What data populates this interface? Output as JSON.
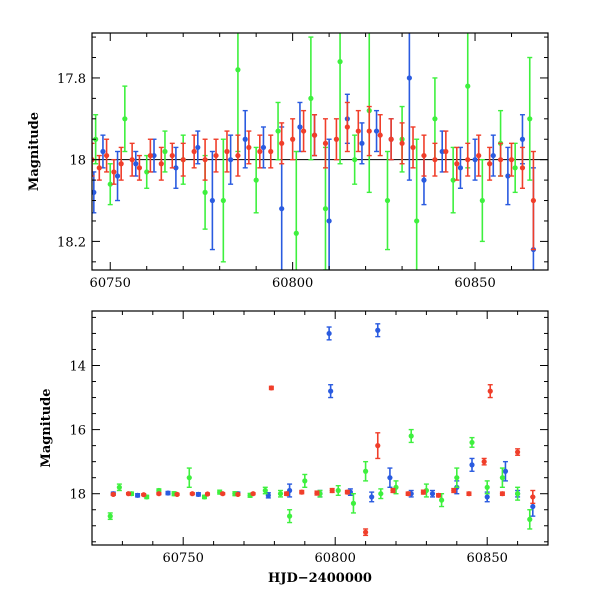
{
  "chart_data": [
    {
      "type": "scatter",
      "title": "",
      "xlabel": "",
      "ylabel": "Magnitude",
      "xlim": [
        60745,
        60870
      ],
      "ylim": [
        18.27,
        17.69
      ],
      "y_inverted": true,
      "reference_line": 18.0,
      "x_ticks": [
        60750,
        60800,
        60850
      ],
      "x_tick_labels": [
        "60750",
        "60800",
        "60850"
      ],
      "y_ticks": [
        17.8,
        18.0,
        18.2
      ],
      "y_tick_labels": [
        "17.8",
        "18",
        "18.2"
      ],
      "grid": false,
      "series": [
        {
          "color": "#2a5be0",
          "x": [
            60745.5,
            60748,
            60752,
            60757,
            60762,
            60768,
            60774,
            60778,
            60783,
            60787,
            60792,
            60797,
            60802,
            60806,
            60810,
            60815,
            60819,
            60823,
            60827,
            60832,
            60836,
            60841,
            60846,
            60850,
            60855,
            60859,
            60863,
            60866
          ],
          "y": [
            18.08,
            17.98,
            18.04,
            18.01,
            17.99,
            18.02,
            17.97,
            18.1,
            18.0,
            17.95,
            17.97,
            18.12,
            17.92,
            17.94,
            18.15,
            17.9,
            17.96,
            17.93,
            17.95,
            17.8,
            18.05,
            17.98,
            18.02,
            18.0,
            17.99,
            18.04,
            17.95,
            18.22
          ],
          "err": [
            0.05,
            0.04,
            0.06,
            0.03,
            0.04,
            0.05,
            0.04,
            0.12,
            0.06,
            0.07,
            0.05,
            0.2,
            0.06,
            0.05,
            0.2,
            0.06,
            0.05,
            0.05,
            0.05,
            0.25,
            0.06,
            0.05,
            0.05,
            0.05,
            0.05,
            0.07,
            0.06,
            0.2
          ]
        },
        {
          "color": "#3ef03e",
          "x": [
            60746,
            60750,
            60754,
            60760,
            60765,
            60770,
            60776,
            60781,
            60785,
            60790,
            60796,
            60801,
            60805,
            60809,
            60813,
            60817,
            60821,
            60826,
            60830,
            60834,
            60839,
            60844,
            60848,
            60852,
            60857,
            60861,
            60865
          ],
          "y": [
            17.95,
            18.06,
            17.9,
            18.03,
            17.98,
            18.0,
            18.08,
            18.1,
            17.78,
            18.05,
            17.93,
            18.18,
            17.85,
            18.12,
            17.76,
            18.0,
            17.88,
            18.1,
            17.95,
            18.15,
            17.9,
            18.05,
            17.82,
            18.1,
            17.96,
            18.02,
            17.9
          ],
          "err": [
            0.06,
            0.05,
            0.08,
            0.04,
            0.05,
            0.06,
            0.09,
            0.15,
            0.2,
            0.08,
            0.07,
            0.2,
            0.15,
            0.15,
            0.25,
            0.06,
            0.2,
            0.12,
            0.08,
            0.2,
            0.1,
            0.08,
            0.2,
            0.1,
            0.08,
            0.06,
            0.15
          ]
        },
        {
          "color": "#f03e2a",
          "x": [
            60745,
            60747,
            60749,
            60751,
            60753,
            60756,
            60758,
            60761,
            60764,
            60767,
            60770,
            60773,
            60776,
            60779,
            60782,
            60785,
            60788,
            60791,
            60794,
            60797,
            60800,
            60803,
            60806,
            60809,
            60812,
            60815,
            60818,
            60821,
            60824,
            60827,
            60830,
            60833,
            60836,
            60839,
            60842,
            60845,
            60848,
            60851,
            60854,
            60857,
            60860,
            60863,
            60866
          ],
          "y": [
            18.0,
            18.02,
            17.99,
            18.03,
            18.01,
            18.0,
            18.02,
            17.99,
            18.01,
            17.99,
            18.0,
            17.98,
            18.0,
            17.99,
            17.98,
            17.99,
            17.97,
            17.98,
            17.98,
            17.96,
            17.95,
            17.93,
            17.94,
            17.96,
            17.95,
            17.92,
            17.93,
            17.93,
            17.94,
            17.95,
            17.96,
            17.97,
            17.99,
            18.0,
            17.98,
            18.01,
            18.0,
            17.99,
            18.01,
            18.0,
            18.0,
            18.02,
            18.1
          ],
          "err": [
            0.04,
            0.03,
            0.04,
            0.03,
            0.04,
            0.04,
            0.03,
            0.04,
            0.04,
            0.03,
            0.04,
            0.04,
            0.05,
            0.04,
            0.05,
            0.05,
            0.04,
            0.04,
            0.04,
            0.05,
            0.05,
            0.05,
            0.05,
            0.06,
            0.05,
            0.06,
            0.05,
            0.06,
            0.05,
            0.05,
            0.05,
            0.05,
            0.05,
            0.04,
            0.05,
            0.04,
            0.04,
            0.05,
            0.04,
            0.04,
            0.04,
            0.05,
            0.12
          ]
        }
      ]
    },
    {
      "type": "scatter",
      "title": "",
      "xlabel": "HJD−2400000",
      "ylabel": "Magnitude",
      "xlim": [
        60720,
        60870
      ],
      "ylim": [
        19.6,
        12.3
      ],
      "y_inverted": true,
      "x_ticks": [
        60750,
        60800,
        60850
      ],
      "x_tick_labels": [
        "60750",
        "60800",
        "60850"
      ],
      "y_ticks": [
        14,
        16,
        18
      ],
      "y_tick_labels": [
        "14",
        "16",
        "18"
      ],
      "grid": false,
      "series": [
        {
          "color": "#2a5be0",
          "x": [
            60727,
            60735,
            60745,
            60755,
            60768,
            60778,
            60785,
            60795,
            60798,
            60798.5,
            60805,
            60812,
            60814,
            60818,
            60825,
            60832,
            60840,
            60845,
            60850,
            60856,
            60860,
            60865
          ],
          "y": [
            18.0,
            18.05,
            17.98,
            18.02,
            18.0,
            18.05,
            17.9,
            18.0,
            13.0,
            14.8,
            17.95,
            18.1,
            12.9,
            17.5,
            18.0,
            18.0,
            17.8,
            17.1,
            18.1,
            17.3,
            18.0,
            18.4
          ],
          "err": [
            0.05,
            0.05,
            0.05,
            0.05,
            0.05,
            0.08,
            0.2,
            0.1,
            0.2,
            0.2,
            0.1,
            0.15,
            0.2,
            0.3,
            0.1,
            0.1,
            0.2,
            0.2,
            0.15,
            0.3,
            0.1,
            0.3
          ]
        },
        {
          "color": "#3ef03e",
          "x": [
            60726,
            60729,
            60733,
            60738,
            60742,
            60747,
            60752,
            60757,
            60762,
            60767,
            60772,
            60777,
            60782,
            60785,
            60790,
            60795,
            60801,
            60806,
            60810,
            60815,
            60820,
            60825,
            60830,
            60835,
            60840,
            60845,
            60850,
            60855,
            60860,
            60864
          ],
          "y": [
            18.7,
            17.8,
            18.0,
            18.1,
            17.9,
            18.0,
            17.5,
            18.1,
            17.95,
            18.0,
            18.05,
            17.9,
            18.0,
            18.7,
            17.6,
            18.0,
            17.9,
            18.3,
            17.3,
            18.0,
            17.8,
            16.2,
            17.9,
            18.2,
            17.5,
            16.4,
            17.8,
            17.5,
            18.0,
            18.8
          ],
          "err": [
            0.1,
            0.1,
            0.05,
            0.05,
            0.05,
            0.06,
            0.3,
            0.05,
            0.06,
            0.06,
            0.06,
            0.1,
            0.1,
            0.2,
            0.2,
            0.1,
            0.15,
            0.3,
            0.3,
            0.15,
            0.2,
            0.2,
            0.2,
            0.2,
            0.3,
            0.15,
            0.2,
            0.3,
            0.2,
            0.3
          ]
        },
        {
          "color": "#f03e2a",
          "x": [
            60727,
            60732,
            60737,
            60742,
            60748,
            60753,
            60758,
            60763,
            60768,
            60773,
            60779,
            60784,
            60789,
            60794,
            60799,
            60804,
            60810,
            60814,
            60819,
            60824,
            60829,
            60834,
            60839,
            60844,
            60849,
            60851,
            60855,
            60860,
            60865
          ],
          "y": [
            18.02,
            18.0,
            18.03,
            18.0,
            18.02,
            18.0,
            18.01,
            18.0,
            18.02,
            18.0,
            14.7,
            18.0,
            17.95,
            17.98,
            17.9,
            17.95,
            19.2,
            16.5,
            17.9,
            18.0,
            17.95,
            18.05,
            17.9,
            18.0,
            17.0,
            14.8,
            18.0,
            16.7,
            18.1
          ],
          "err": [
            0.03,
            0.03,
            0.03,
            0.03,
            0.03,
            0.03,
            0.03,
            0.03,
            0.03,
            0.03,
            0.05,
            0.05,
            0.05,
            0.06,
            0.06,
            0.05,
            0.1,
            0.4,
            0.06,
            0.05,
            0.06,
            0.05,
            0.06,
            0.05,
            0.1,
            0.2,
            0.05,
            0.1,
            0.2
          ]
        }
      ]
    }
  ]
}
